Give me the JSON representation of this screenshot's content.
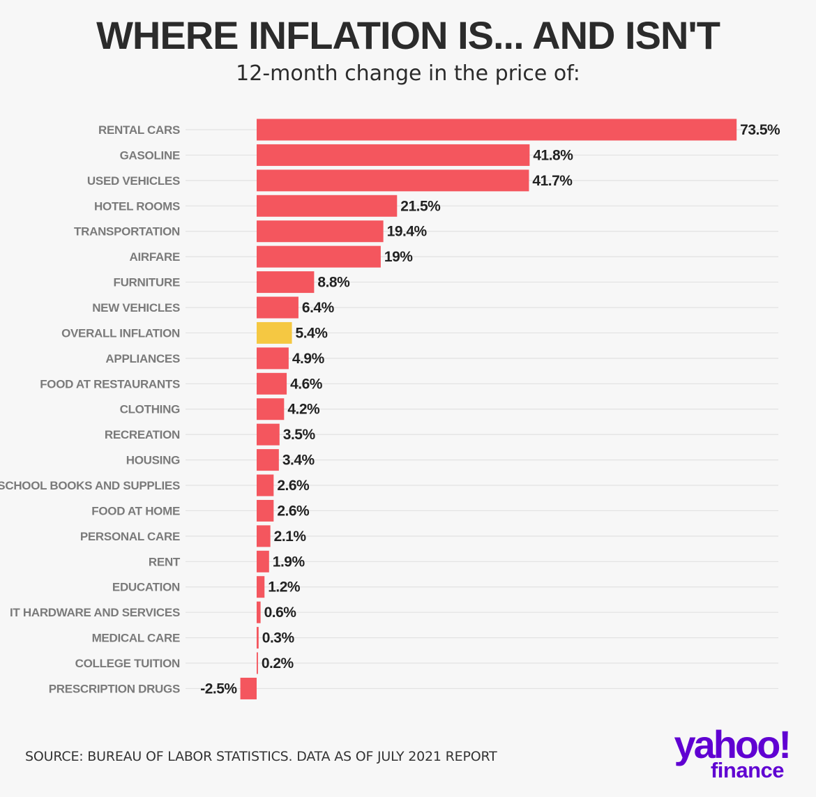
{
  "title": "WHERE INFLATION IS... AND ISN'T",
  "subtitle": "12-month change in the price of:",
  "source": "SOURCE: BUREAU OF LABOR STATISTICS. DATA AS OF JULY 2021 REPORT",
  "logo": {
    "yahoo": "yahoo!",
    "finance": "finance"
  },
  "colors": {
    "bar": "#f4565e",
    "highlight": "#f5c842",
    "grid": "#e2e2e2",
    "brand": "#6001d2"
  },
  "chart_data": {
    "type": "bar",
    "orientation": "horizontal",
    "title": "WHERE INFLATION IS... AND ISN'T",
    "subtitle": "12-month change in the price of:",
    "highlight": "OVERALL INFLATION",
    "categories": [
      "RENTAL CARS",
      "GASOLINE",
      "USED VEHICLES",
      "HOTEL ROOMS",
      "TRANSPORTATION",
      "AIRFARE",
      "FURNITURE",
      "NEW VEHICLES",
      "OVERALL INFLATION",
      "APPLIANCES",
      "FOOD AT RESTAURANTS",
      "CLOTHING",
      "RECREATION",
      "HOUSING",
      "SCHOOL BOOKS AND SUPPLIES",
      "FOOD AT HOME",
      "PERSONAL CARE",
      "RENT",
      "EDUCATION",
      "IT HARDWARE AND SERVICES",
      "MEDICAL CARE",
      "COLLEGE TUITION",
      "PRESCRIPTION DRUGS"
    ],
    "values": [
      73.5,
      41.8,
      41.7,
      21.5,
      19.4,
      19,
      8.8,
      6.4,
      5.4,
      4.9,
      4.6,
      4.2,
      3.5,
      3.4,
      2.6,
      2.6,
      2.1,
      1.9,
      1.2,
      0.6,
      0.3,
      0.2,
      -2.5
    ],
    "value_labels": [
      "73.5%",
      "41.8%",
      "41.7%",
      "21.5%",
      "19.4%",
      "19%",
      "8.8%",
      "6.4%",
      "5.4%",
      "4.9%",
      "4.6%",
      "4.2%",
      "3.5%",
      "3.4%",
      "2.6%",
      "2.6%",
      "2.1%",
      "1.9%",
      "1.2%",
      "0.6%",
      "0.3%",
      "0.2%",
      "-2.5%"
    ],
    "grid": true,
    "legend": "none"
  }
}
